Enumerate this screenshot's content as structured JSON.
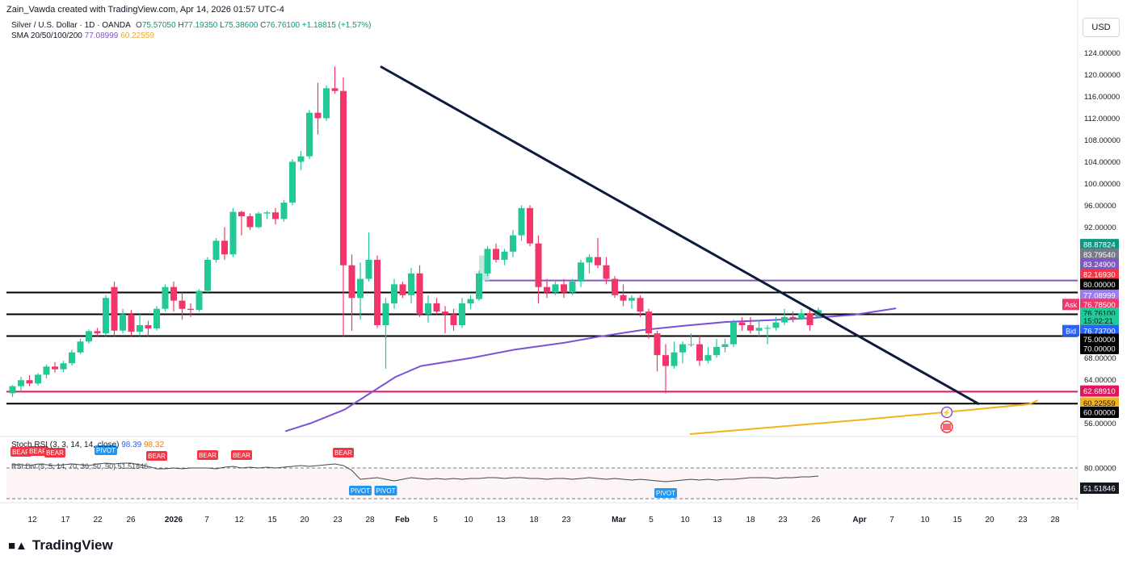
{
  "header": {
    "credit": "Zain_Vawda created with TradingView.com, Apr 14, 2026 01:57 UTC-4",
    "symbol": "Silver / U.S. Dollar · 1D · OANDA",
    "ohlc": {
      "o_label": "O",
      "o": "75.57050",
      "h_label": "H",
      "h": "77.19350",
      "l_label": "L",
      "l": "75.38600",
      "c_label": "C",
      "c": "76.76100",
      "change": "+1.18815 (+1.57%)"
    },
    "sma_label": "SMA 20/50/100/200",
    "sma_1": "77.08999",
    "sma_2": "60.22559"
  },
  "currency_button": "USD",
  "rsi": {
    "header": "Stoch RSI (3, 3, 14, 14, close)",
    "k": "98.39",
    "d": "98.32",
    "div_label": "RSI Div (5, 5, 14, 70, 30, 50, 90)",
    "div_value": "51.51846",
    "level_80": "80.00000",
    "value_badge": "51.51846"
  },
  "brand": "TradingView",
  "colors": {
    "up": "#22c997",
    "down": "#f23669",
    "trendline": "#0d1b3e",
    "sma_purple": "#7b52d9",
    "sma_orange": "#f5b21a",
    "support_magenta": "#e0175f",
    "resistance_purple": "#7e57c2"
  },
  "chart_data": {
    "type": "candlestick",
    "title": "Silver / U.S. Dollar · 1D · OANDA",
    "ylim": [
      54,
      126
    ],
    "y_ticks": [
      "56.00000",
      "60.00000",
      "64.00000",
      "68.00000",
      "72.00000",
      "76.00000",
      "80.00000",
      "84.00000",
      "88.00000",
      "92.00000",
      "96.00000",
      "100.00000",
      "104.00000",
      "108.00000",
      "112.00000",
      "116.00000",
      "120.00000",
      "124.00000"
    ],
    "x_labels": [
      "12",
      "17",
      "22",
      "26",
      "2026",
      "7",
      "12",
      "15",
      "20",
      "23",
      "28",
      "Feb",
      "5",
      "10",
      "13",
      "18",
      "23",
      "Mar",
      "5",
      "10",
      "13",
      "18",
      "23",
      "26",
      "Apr",
      "7",
      "10",
      "15",
      "20",
      "23",
      "28"
    ],
    "candles": [
      {
        "o": 61.5,
        "h": 63.0,
        "l": 60.8,
        "c": 62.8
      },
      {
        "o": 62.8,
        "h": 64.5,
        "l": 62.0,
        "c": 63.9
      },
      {
        "o": 63.9,
        "h": 64.8,
        "l": 62.8,
        "c": 63.3
      },
      {
        "o": 63.3,
        "h": 65.2,
        "l": 62.9,
        "c": 64.9
      },
      {
        "o": 64.9,
        "h": 66.8,
        "l": 64.2,
        "c": 66.4
      },
      {
        "o": 66.4,
        "h": 67.2,
        "l": 65.3,
        "c": 65.9
      },
      {
        "o": 65.9,
        "h": 67.5,
        "l": 65.4,
        "c": 67.0
      },
      {
        "o": 67.0,
        "h": 69.5,
        "l": 66.6,
        "c": 69.0
      },
      {
        "o": 69.0,
        "h": 71.5,
        "l": 68.7,
        "c": 71.0
      },
      {
        "o": 71.0,
        "h": 73.2,
        "l": 70.6,
        "c": 72.9
      },
      {
        "o": 72.9,
        "h": 73.5,
        "l": 72.0,
        "c": 72.5
      },
      {
        "o": 72.5,
        "h": 79.5,
        "l": 72.0,
        "c": 79.0
      },
      {
        "o": 81.0,
        "h": 82.0,
        "l": 72.0,
        "c": 73.0
      },
      {
        "o": 73.0,
        "h": 77.0,
        "l": 72.5,
        "c": 76.0
      },
      {
        "o": 76.0,
        "h": 76.8,
        "l": 72.0,
        "c": 72.8
      },
      {
        "o": 72.8,
        "h": 76.0,
        "l": 72.0,
        "c": 74.0
      },
      {
        "o": 74.0,
        "h": 74.8,
        "l": 72.0,
        "c": 73.4
      },
      {
        "o": 73.4,
        "h": 77.5,
        "l": 73.0,
        "c": 77.0
      },
      {
        "o": 77.0,
        "h": 81.5,
        "l": 76.5,
        "c": 81.0
      },
      {
        "o": 81.0,
        "h": 82.0,
        "l": 76.5,
        "c": 78.5
      },
      {
        "o": 78.5,
        "h": 80.0,
        "l": 75.0,
        "c": 77.0
      },
      {
        "o": 77.0,
        "h": 78.0,
        "l": 75.5,
        "c": 76.8
      },
      {
        "o": 76.8,
        "h": 80.6,
        "l": 76.5,
        "c": 80.3
      },
      {
        "o": 80.3,
        "h": 86.5,
        "l": 80.0,
        "c": 86.0
      },
      {
        "o": 86.0,
        "h": 90.0,
        "l": 85.5,
        "c": 89.5
      },
      {
        "o": 89.5,
        "h": 92.0,
        "l": 86.0,
        "c": 87.0
      },
      {
        "o": 87.0,
        "h": 95.5,
        "l": 86.5,
        "c": 94.8
      },
      {
        "o": 94.8,
        "h": 95.0,
        "l": 90.5,
        "c": 94.0
      },
      {
        "o": 94.0,
        "h": 94.5,
        "l": 91.5,
        "c": 92.0
      },
      {
        "o": 92.0,
        "h": 94.8,
        "l": 91.8,
        "c": 94.5
      },
      {
        "o": 94.5,
        "h": 95.0,
        "l": 93.5,
        "c": 94.7
      },
      {
        "o": 94.7,
        "h": 95.5,
        "l": 92.5,
        "c": 93.5
      },
      {
        "o": 93.5,
        "h": 97.0,
        "l": 93.0,
        "c": 96.5
      },
      {
        "o": 96.5,
        "h": 104.5,
        "l": 96.0,
        "c": 104.0
      },
      {
        "o": 104.0,
        "h": 106.0,
        "l": 102.5,
        "c": 105.0
      },
      {
        "o": 105.0,
        "h": 113.5,
        "l": 104.5,
        "c": 113.0
      },
      {
        "o": 113.0,
        "h": 118.5,
        "l": 109.0,
        "c": 112.0
      },
      {
        "o": 112.0,
        "h": 118.0,
        "l": 111.5,
        "c": 117.5
      },
      {
        "o": 117.5,
        "h": 121.5,
        "l": 116.5,
        "c": 117.0
      },
      {
        "o": 117.0,
        "h": 119.5,
        "l": 72.0,
        "c": 85.0
      },
      {
        "o": 85.0,
        "h": 87.0,
        "l": 73.0,
        "c": 79.0
      },
      {
        "o": 79.0,
        "h": 85.5,
        "l": 75.0,
        "c": 82.5
      },
      {
        "o": 82.5,
        "h": 91.0,
        "l": 82.0,
        "c": 86.0
      },
      {
        "o": 86.0,
        "h": 86.8,
        "l": 73.5,
        "c": 74.0
      },
      {
        "o": 74.0,
        "h": 79.0,
        "l": 66.0,
        "c": 78.0
      },
      {
        "o": 78.0,
        "h": 82.5,
        "l": 77.0,
        "c": 81.5
      },
      {
        "o": 81.5,
        "h": 82.0,
        "l": 79.0,
        "c": 79.5
      },
      {
        "o": 79.5,
        "h": 84.5,
        "l": 78.0,
        "c": 83.5
      },
      {
        "o": 83.5,
        "h": 85.0,
        "l": 75.5,
        "c": 76.0
      },
      {
        "o": 76.0,
        "h": 79.5,
        "l": 74.5,
        "c": 78.0
      },
      {
        "o": 78.0,
        "h": 79.0,
        "l": 76.0,
        "c": 76.5
      },
      {
        "o": 76.5,
        "h": 77.5,
        "l": 72.5,
        "c": 76.0
      },
      {
        "o": 76.0,
        "h": 77.0,
        "l": 73.0,
        "c": 74.0
      },
      {
        "o": 74.0,
        "h": 79.0,
        "l": 73.5,
        "c": 78.0
      },
      {
        "o": 78.0,
        "h": 79.5,
        "l": 77.0,
        "c": 78.8
      },
      {
        "o": 78.8,
        "h": 84.0,
        "l": 78.5,
        "c": 83.5
      },
      {
        "o": 83.5,
        "h": 88.5,
        "l": 83.0,
        "c": 88.0
      },
      {
        "o": 88.0,
        "h": 89.0,
        "l": 85.5,
        "c": 86.0
      },
      {
        "o": 86.0,
        "h": 88.0,
        "l": 85.0,
        "c": 87.5
      },
      {
        "o": 87.5,
        "h": 91.5,
        "l": 86.5,
        "c": 90.5
      },
      {
        "o": 90.5,
        "h": 96.0,
        "l": 89.5,
        "c": 95.5
      },
      {
        "o": 95.5,
        "h": 96.0,
        "l": 88.5,
        "c": 89.0
      },
      {
        "o": 89.0,
        "h": 90.5,
        "l": 78.0,
        "c": 81.0
      },
      {
        "o": 81.0,
        "h": 82.5,
        "l": 79.0,
        "c": 80.0
      },
      {
        "o": 80.0,
        "h": 82.0,
        "l": 79.5,
        "c": 81.5
      },
      {
        "o": 81.5,
        "h": 82.5,
        "l": 79.0,
        "c": 80.0
      },
      {
        "o": 80.0,
        "h": 82.5,
        "l": 79.5,
        "c": 82.0
      },
      {
        "o": 82.0,
        "h": 86.0,
        "l": 81.0,
        "c": 85.5
      },
      {
        "o": 85.5,
        "h": 87.0,
        "l": 83.5,
        "c": 86.5
      },
      {
        "o": 86.5,
        "h": 90.0,
        "l": 84.5,
        "c": 85.0
      },
      {
        "o": 85.0,
        "h": 86.5,
        "l": 81.5,
        "c": 82.5
      },
      {
        "o": 82.5,
        "h": 83.0,
        "l": 79.0,
        "c": 79.5
      },
      {
        "o": 79.5,
        "h": 81.5,
        "l": 77.5,
        "c": 78.5
      },
      {
        "o": 78.5,
        "h": 79.5,
        "l": 77.0,
        "c": 79.0
      },
      {
        "o": 79.0,
        "h": 79.5,
        "l": 75.5,
        "c": 76.5
      },
      {
        "o": 76.5,
        "h": 77.0,
        "l": 71.5,
        "c": 72.5
      },
      {
        "o": 72.5,
        "h": 73.0,
        "l": 65.5,
        "c": 68.5
      },
      {
        "o": 68.5,
        "h": 70.5,
        "l": 61.5,
        "c": 66.5
      },
      {
        "o": 66.5,
        "h": 71.0,
        "l": 66.0,
        "c": 69.0
      },
      {
        "o": 69.0,
        "h": 71.0,
        "l": 67.0,
        "c": 70.5
      },
      {
        "o": 70.5,
        "h": 72.5,
        "l": 70.0,
        "c": 70.5
      },
      {
        "o": 70.5,
        "h": 72.0,
        "l": 66.5,
        "c": 67.5
      },
      {
        "o": 67.5,
        "h": 70.0,
        "l": 67.0,
        "c": 68.5
      },
      {
        "o": 68.5,
        "h": 71.5,
        "l": 68.0,
        "c": 70.0
      },
      {
        "o": 70.0,
        "h": 71.5,
        "l": 69.0,
        "c": 70.5
      },
      {
        "o": 70.5,
        "h": 75.0,
        "l": 70.0,
        "c": 74.5
      },
      {
        "o": 74.5,
        "h": 75.5,
        "l": 73.0,
        "c": 74.0
      },
      {
        "o": 74.0,
        "h": 75.5,
        "l": 72.5,
        "c": 73.0
      },
      {
        "o": 73.0,
        "h": 75.0,
        "l": 72.0,
        "c": 73.5
      },
      {
        "o": 73.5,
        "h": 74.0,
        "l": 70.5,
        "c": 73.5
      },
      {
        "o": 73.5,
        "h": 75.5,
        "l": 73.0,
        "c": 74.5
      },
      {
        "o": 74.5,
        "h": 77.0,
        "l": 74.0,
        "c": 75.5
      },
      {
        "o": 75.5,
        "h": 76.5,
        "l": 74.5,
        "c": 75.2
      },
      {
        "o": 75.2,
        "h": 77.0,
        "l": 75.0,
        "c": 76.2
      },
      {
        "o": 76.2,
        "h": 76.8,
        "l": 73.0,
        "c": 74.0
      },
      {
        "o": 75.57,
        "h": 77.19,
        "l": 75.39,
        "c": 76.76
      }
    ],
    "sma_100": [
      [
        23,
        54.5
      ],
      [
        26,
        56.0
      ],
      [
        30,
        58.5
      ],
      [
        33,
        61.5
      ],
      [
        36,
        64.5
      ],
      [
        39,
        66.5
      ],
      [
        45,
        68.0
      ],
      [
        50,
        69.5
      ],
      [
        56,
        70.8
      ],
      [
        60,
        71.9
      ],
      [
        65,
        73.1
      ],
      [
        70,
        73.9
      ],
      [
        75,
        74.6
      ],
      [
        80,
        74.9
      ],
      [
        85,
        75.3
      ],
      [
        90,
        75.9
      ],
      [
        95,
        77.09
      ]
    ],
    "sma_200": [
      [
        55,
        54.0
      ],
      [
        65,
        55.3
      ],
      [
        75,
        56.6
      ],
      [
        85,
        58.0
      ],
      [
        95,
        59.5
      ],
      [
        96,
        60.2
      ]
    ],
    "trendline": [
      [
        38,
        121.5
      ],
      [
        100,
        59.5
      ]
    ],
    "horizontal_levels": [
      {
        "y": 80.0,
        "color": "#000000"
      },
      {
        "y": 76.0,
        "color": "#000000"
      },
      {
        "y": 72.0,
        "color": "#000000"
      },
      {
        "y": 61.8,
        "color": "#e0175f"
      },
      {
        "y": 59.6,
        "color": "#000000"
      }
    ],
    "resistance_segment": {
      "x_start": 49,
      "x_end": 120,
      "y": 82.2
    },
    "price_labels": [
      {
        "text": "88.87824",
        "bg": "#089981",
        "fg": "#ffffff",
        "y": 88.8
      },
      {
        "text": "83.79540",
        "bg": "#787b86",
        "fg": "#ffffff",
        "y": 87.0
      },
      {
        "text": "83.24900",
        "bg": "#7e57c2",
        "fg": "#ffffff",
        "y": 85.2
      },
      {
        "text": "82.16930",
        "bg": "#f23645",
        "fg": "#ffffff",
        "y": 83.3
      },
      {
        "text": "80.00000",
        "bg": "#000000",
        "fg": "#ffffff",
        "y": 81.5
      },
      {
        "text": "77.08999",
        "bg": "#9c7cf0",
        "fg": "#ffffff",
        "y": 79.5
      },
      {
        "text": "76.78500",
        "bg": "#f23669",
        "fg": "#ffffff",
        "y": 77.8
      },
      {
        "text": "76.76100",
        "bg": "#22c997",
        "fg": "#131722",
        "y": 76.2
      },
      {
        "text": "15:02:21",
        "bg": "#22c997",
        "fg": "#131722",
        "y": 74.8
      },
      {
        "text": "76.73700",
        "bg": "#2962ff",
        "fg": "#ffffff",
        "y": 73.0
      },
      {
        "text": "75.00000",
        "bg": "#000000",
        "fg": "#ffffff",
        "y": 71.4
      },
      {
        "text": "70.00000",
        "bg": "#000000",
        "fg": "#ffffff",
        "y": 69.7
      },
      {
        "text": "62.68910",
        "bg": "#e0175f",
        "fg": "#ffffff",
        "y": 61.9
      },
      {
        "text": "60.22559",
        "bg": "#f5b21a",
        "fg": "#131722",
        "y": 59.7
      },
      {
        "text": "60.00000",
        "bg": "#000000",
        "fg": "#ffffff",
        "y": 58.0
      }
    ],
    "ask_label": "Ask",
    "bid_label": "Bid",
    "rsi_series": [
      84,
      84,
      83,
      85,
      84,
      83,
      84,
      85,
      84,
      83,
      85,
      86,
      85,
      86,
      86,
      84,
      82,
      79,
      79,
      80,
      79,
      80,
      80,
      80,
      79,
      81,
      82,
      80,
      81,
      80,
      81,
      80,
      81,
      82,
      83,
      82,
      83,
      84,
      85,
      83,
      77,
      66,
      67,
      68,
      66,
      64,
      66,
      68,
      67,
      66,
      67,
      66,
      67,
      66,
      67,
      67,
      68,
      68,
      67,
      68,
      68,
      67,
      67,
      66,
      67,
      67,
      66,
      67,
      68,
      67,
      66,
      67,
      66,
      65,
      66,
      65,
      64,
      63,
      64,
      65,
      66,
      65,
      66,
      65,
      66,
      66,
      67,
      68,
      68,
      68,
      67,
      68,
      68,
      69,
      69,
      70
    ],
    "rsi_markers": [
      {
        "type": "BEAR",
        "i": 1
      },
      {
        "type": "BEAR",
        "i": 3
      },
      {
        "type": "BEAR",
        "i": 5
      },
      {
        "type": "PIVOT",
        "i": 11,
        "above": true
      },
      {
        "type": "BEAR",
        "i": 17
      },
      {
        "type": "BEAR",
        "i": 23
      },
      {
        "type": "BEAR",
        "i": 27
      },
      {
        "type": "BEAR",
        "i": 39
      },
      {
        "type": "PIVOT",
        "i": 41,
        "above": false
      },
      {
        "type": "PIVOT",
        "i": 44,
        "above": false
      },
      {
        "type": "PIVOT",
        "i": 77,
        "above": false
      }
    ],
    "marker_bear_text": "BEAR",
    "marker_pivot_text": "PIVOT"
  }
}
